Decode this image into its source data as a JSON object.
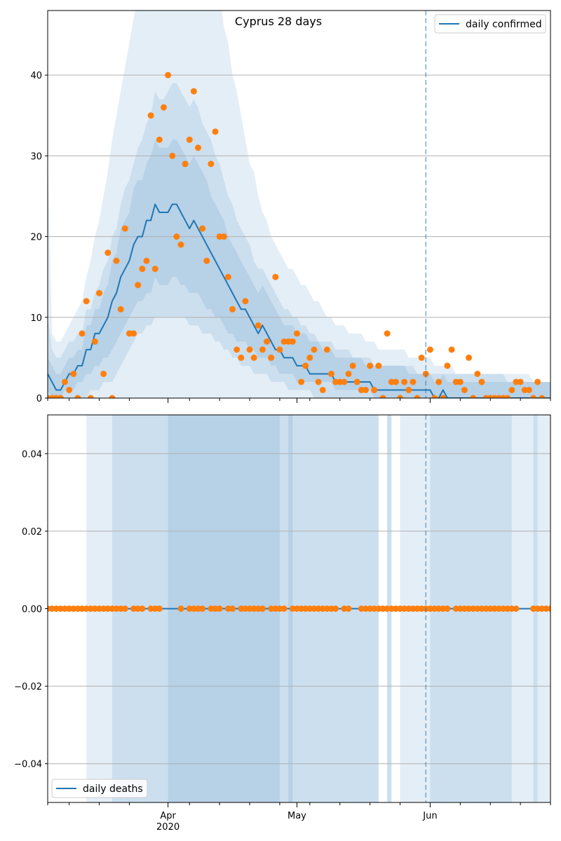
{
  "title": "Cyprus 28 days",
  "xaxis": {
    "start": "2020-03-04",
    "end": "2020-06-29",
    "major_ticks": [
      {
        "date": "2020-04-01",
        "label": "Apr",
        "sublabel": "2020"
      },
      {
        "date": "2020-05-01",
        "label": "May",
        "sublabel": ""
      },
      {
        "date": "2020-06-01",
        "label": "Jun",
        "sublabel": ""
      }
    ],
    "minor_tick_dates": [
      "2020-03-04",
      "2020-03-09",
      "2020-03-16",
      "2020-03-23",
      "2020-04-06",
      "2020-04-13",
      "2020-04-20",
      "2020-04-27",
      "2020-05-04",
      "2020-05-11",
      "2020-05-18",
      "2020-05-25",
      "2020-06-08",
      "2020-06-15",
      "2020-06-22",
      "2020-06-29"
    ],
    "marker_date": "2020-05-31"
  },
  "colors": {
    "line": "#1f77b4",
    "points": "#ff7f0e",
    "band": "#1f77b4",
    "grid": "#b0b0b0",
    "marker": "#1f77b4"
  },
  "chart_data": [
    {
      "type": "line",
      "panel": "top",
      "ylim": [
        0,
        48
      ],
      "yticks": [
        0,
        10,
        20,
        30,
        40
      ],
      "ytick_labels": [
        "0",
        "10",
        "20",
        "30",
        "40"
      ],
      "grid": "horizontal",
      "legend": {
        "position": "top-right",
        "label": "daily confirmed"
      },
      "series": [
        {
          "name": "daily confirmed",
          "kind": "line",
          "x_start": "2020-03-04",
          "step_days": 1,
          "values": [
            3,
            2,
            1,
            1,
            2,
            3,
            3,
            4,
            4,
            6,
            6,
            8,
            8,
            9,
            10,
            12,
            13,
            15,
            16,
            17,
            19,
            20,
            20,
            22,
            22,
            24,
            23,
            23,
            23,
            24,
            24,
            23,
            22,
            21,
            22,
            21,
            20,
            19,
            18,
            17,
            16,
            15,
            14,
            13,
            12,
            11,
            11,
            10,
            9,
            8,
            9,
            8,
            7,
            6,
            6,
            5,
            5,
            5,
            4,
            4,
            4,
            3,
            3,
            3,
            3,
            3,
            3,
            2,
            2,
            2,
            2,
            2,
            2,
            2,
            2,
            2,
            1,
            1,
            1,
            1,
            1,
            1,
            1,
            1,
            1,
            1,
            1,
            1,
            1,
            1,
            0,
            0,
            1,
            0,
            0,
            0,
            0,
            0,
            0,
            0,
            0,
            0,
            0,
            0,
            0,
            0,
            0,
            0,
            0,
            0,
            0,
            0,
            0,
            0,
            0,
            0,
            0,
            0
          ]
        },
        {
          "name": "",
          "kind": "scatter",
          "x_start": "2020-03-04",
          "step_days": 1,
          "values": [
            0,
            0,
            0,
            0,
            2,
            1,
            3,
            0,
            8,
            12,
            0,
            7,
            13,
            3,
            18,
            0,
            17,
            11,
            21,
            8,
            8,
            14,
            16,
            17,
            35,
            16,
            32,
            36,
            40,
            30,
            20,
            19,
            29,
            32,
            38,
            31,
            21,
            17,
            29,
            33,
            20,
            20,
            15,
            11,
            6,
            5,
            12,
            6,
            5,
            9,
            6,
            7,
            5,
            15,
            6,
            7,
            7,
            7,
            8,
            2,
            4,
            5,
            6,
            2,
            1,
            6,
            3,
            2,
            2,
            2,
            3,
            4,
            2,
            1,
            1,
            4,
            1,
            4,
            0,
            8,
            2,
            2,
            0,
            2,
            1,
            2,
            0,
            5,
            3,
            6,
            0,
            2,
            0,
            4,
            6,
            2,
            2,
            1,
            5,
            0,
            3,
            2,
            0,
            0,
            0,
            0,
            0,
            0,
            1,
            2,
            2,
            1,
            1,
            0,
            2,
            0
          ]
        }
      ],
      "bands": [
        {
          "level": "outer",
          "lower": [
            0,
            0,
            0,
            0,
            0,
            0,
            0,
            0,
            0,
            0,
            0,
            0,
            0,
            0,
            0,
            0,
            0,
            0,
            0,
            0,
            0,
            0,
            0,
            0,
            0,
            0,
            0,
            0,
            0,
            0,
            0,
            0,
            0,
            0,
            0,
            0,
            0,
            0,
            0,
            0,
            0,
            0,
            0,
            0,
            0,
            0,
            0,
            0,
            0,
            0,
            0,
            0,
            0,
            0,
            0,
            0,
            0,
            0,
            0,
            0,
            0,
            0,
            0,
            0,
            0,
            0,
            0,
            0,
            0,
            0,
            0,
            0,
            0,
            0,
            0,
            0,
            0,
            0,
            0,
            0,
            0,
            0,
            0,
            0,
            0,
            0,
            0,
            0,
            0,
            0,
            0,
            0,
            0,
            0,
            0,
            0,
            0,
            0,
            0,
            0,
            0,
            0,
            0,
            0,
            0,
            0,
            0,
            0,
            0,
            0,
            0,
            0,
            0,
            0,
            0,
            0,
            0,
            0
          ],
          "upper": [
            30,
            8,
            7,
            7,
            8,
            9,
            10,
            11,
            12,
            15,
            17,
            20,
            22,
            25,
            28,
            32,
            35,
            38,
            41,
            44,
            47,
            50,
            52,
            54,
            56,
            58,
            58,
            58,
            58,
            58,
            58,
            58,
            58,
            58,
            58,
            58,
            58,
            58,
            58,
            55,
            50,
            46,
            44,
            40,
            38,
            35,
            32,
            29,
            28,
            25,
            23,
            22,
            20,
            19,
            18,
            17,
            16,
            16,
            15,
            14,
            14,
            13,
            12,
            12,
            11,
            10,
            10,
            9,
            9,
            9,
            8,
            8,
            8,
            8,
            7,
            7,
            7,
            6,
            6,
            6,
            6,
            6,
            6,
            6,
            5,
            5,
            5,
            5,
            5,
            5,
            4,
            4,
            4,
            4,
            4,
            3,
            3,
            3,
            3,
            3,
            3,
            3,
            3,
            3,
            3,
            3,
            3,
            3,
            3,
            3,
            3,
            3,
            3,
            2,
            2,
            2,
            2,
            2
          ]
        },
        {
          "level": "middle",
          "lower": [
            0,
            0,
            0,
            0,
            0,
            0,
            0,
            0,
            0,
            0,
            1,
            1,
            1,
            2,
            2,
            2,
            3,
            4,
            5,
            6,
            7,
            8,
            8,
            9,
            9,
            10,
            10,
            10,
            10,
            10,
            10,
            10,
            10,
            9,
            9,
            9,
            8,
            8,
            8,
            7,
            7,
            6,
            6,
            5,
            5,
            4,
            4,
            4,
            3,
            3,
            3,
            3,
            2,
            2,
            2,
            2,
            1,
            1,
            1,
            1,
            1,
            1,
            0,
            0,
            0,
            0,
            0,
            0,
            0,
            0,
            0,
            0,
            0,
            0,
            0,
            0,
            0,
            0,
            0,
            0,
            0,
            0,
            0,
            0,
            0,
            0,
            0,
            0,
            0,
            0,
            0,
            0,
            0,
            0,
            0,
            0,
            0,
            0,
            0,
            0,
            0,
            0,
            0,
            0,
            0,
            0,
            0,
            0,
            0,
            0,
            0,
            0,
            0,
            0,
            0,
            0,
            0,
            0
          ],
          "upper": [
            10,
            6,
            5,
            5,
            6,
            7,
            7,
            8,
            8,
            11,
            11,
            13,
            14,
            16,
            17,
            20,
            21,
            24,
            26,
            27,
            29,
            31,
            32,
            34,
            35,
            38,
            37,
            37,
            38,
            39,
            39,
            38,
            37,
            36,
            37,
            36,
            34,
            33,
            32,
            30,
            29,
            27,
            25,
            24,
            22,
            21,
            20,
            19,
            17,
            16,
            16,
            15,
            14,
            13,
            12,
            11,
            11,
            10,
            10,
            9,
            9,
            8,
            8,
            7,
            7,
            7,
            7,
            6,
            6,
            6,
            6,
            5,
            5,
            5,
            5,
            5,
            4,
            4,
            4,
            4,
            4,
            4,
            4,
            4,
            4,
            4,
            3,
            3,
            3,
            3,
            3,
            3,
            3,
            3,
            3,
            3,
            3,
            3,
            3,
            3,
            3,
            3,
            3,
            3,
            3,
            3,
            3,
            2,
            2,
            2,
            2,
            2,
            2,
            2,
            2,
            2,
            2,
            2
          ]
        },
        {
          "level": "inner",
          "lower": [
            1,
            0,
            0,
            0,
            1,
            1,
            1,
            2,
            2,
            3,
            3,
            4,
            4,
            5,
            5,
            6,
            7,
            8,
            9,
            10,
            11,
            12,
            12,
            13,
            13,
            15,
            14,
            14,
            14,
            15,
            15,
            14,
            14,
            13,
            13,
            13,
            12,
            11,
            11,
            10,
            10,
            9,
            8,
            8,
            7,
            7,
            7,
            6,
            6,
            5,
            5,
            5,
            4,
            4,
            3,
            3,
            3,
            3,
            2,
            2,
            2,
            2,
            2,
            2,
            2,
            2,
            2,
            1,
            1,
            1,
            1,
            1,
            1,
            1,
            1,
            1,
            0,
            0,
            0,
            0,
            0,
            0,
            0,
            0,
            0,
            0,
            0,
            0,
            0,
            0,
            0,
            0,
            0,
            0,
            0,
            0,
            0,
            0,
            0,
            0,
            0,
            0,
            0,
            0,
            0,
            0,
            0,
            0,
            0,
            0,
            0,
            0,
            0,
            0,
            0,
            0,
            0,
            0
          ],
          "upper": [
            5,
            4,
            3,
            3,
            4,
            5,
            5,
            6,
            6,
            9,
            9,
            11,
            11,
            13,
            14,
            17,
            18,
            21,
            22,
            23,
            26,
            27,
            27,
            29,
            30,
            32,
            31,
            31,
            31,
            32,
            32,
            31,
            30,
            29,
            30,
            29,
            28,
            27,
            25,
            24,
            23,
            22,
            20,
            19,
            18,
            17,
            16,
            15,
            14,
            13,
            14,
            13,
            12,
            11,
            10,
            9,
            9,
            9,
            8,
            8,
            8,
            7,
            7,
            7,
            6,
            6,
            6,
            5,
            5,
            5,
            5,
            5,
            5,
            5,
            4,
            4,
            4,
            4,
            4,
            4,
            4,
            4,
            4,
            4,
            3,
            3,
            3,
            3,
            3,
            3,
            2,
            2,
            3,
            2,
            2,
            2,
            2,
            2,
            2,
            2,
            2,
            2,
            2,
            2,
            2,
            2,
            2,
            2,
            2,
            2,
            2,
            2,
            2,
            2,
            2,
            2,
            2,
            2
          ]
        }
      ]
    },
    {
      "type": "line",
      "panel": "bottom",
      "ylim": [
        -0.05,
        0.05
      ],
      "yticks": [
        -0.04,
        -0.02,
        0.0,
        0.02,
        0.04
      ],
      "ytick_labels": [
        "−0.04",
        "−0.02",
        "0.00",
        "0.02",
        "0.04"
      ],
      "grid": "horizontal",
      "legend": {
        "position": "bottom-left",
        "label": "daily deaths"
      },
      "series": [
        {
          "name": "daily deaths",
          "kind": "line",
          "x_start": "2020-03-04",
          "step_days": 1,
          "constant": 0,
          "count": 118
        },
        {
          "name": "",
          "kind": "scatter",
          "x_start": "2020-03-04",
          "step_days": 1,
          "constant": 0,
          "missing_dates": [
            "2020-03-23",
            "2020-03-27",
            "2020-03-31",
            "2020-04-01",
            "2020-04-02",
            "2020-04-03",
            "2020-04-05",
            "2020-04-10",
            "2020-04-14",
            "2020-04-17",
            "2020-04-24",
            "2020-04-29",
            "2020-05-11",
            "2020-05-14",
            "2020-05-15",
            "2020-06-06",
            "2020-06-22",
            "2020-06-23",
            "2020-06-24"
          ]
        }
      ],
      "shaded_spans": [
        {
          "level": "outer",
          "ranges": [
            [
              "2020-03-13",
              "2020-05-20"
            ],
            [
              "2020-05-22",
              "2020-05-23"
            ],
            [
              "2020-05-25",
              "2020-06-30"
            ]
          ]
        },
        {
          "level": "middle",
          "ranges": [
            [
              "2020-03-19",
              "2020-05-20"
            ],
            [
              "2020-05-22",
              "2020-05-23"
            ],
            [
              "2020-06-01",
              "2020-06-20"
            ],
            [
              "2020-06-25",
              "2020-06-26"
            ]
          ]
        },
        {
          "level": "inner",
          "ranges": [
            [
              "2020-04-01",
              "2020-04-27"
            ],
            [
              "2020-04-29",
              "2020-04-30"
            ]
          ]
        }
      ]
    }
  ]
}
